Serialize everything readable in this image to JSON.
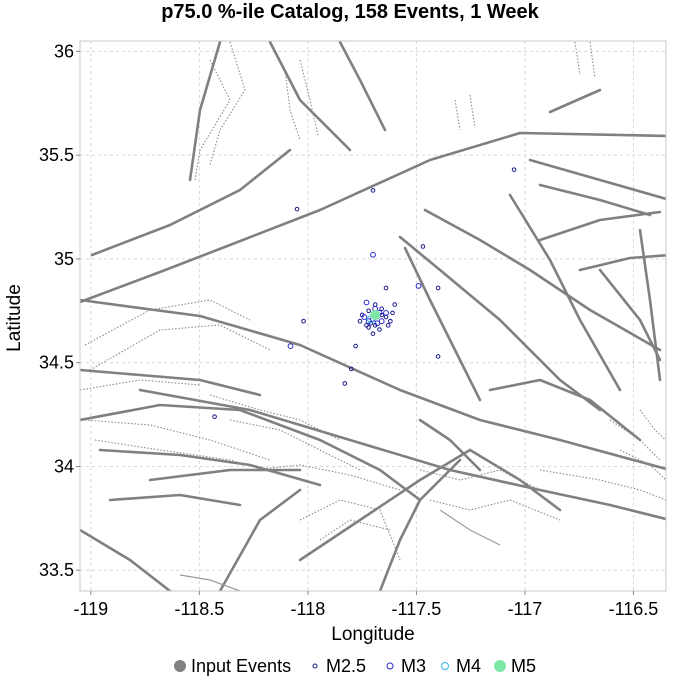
{
  "chart_data": {
    "type": "scatter",
    "title": "p75.0 %-ile Catalog, 158 Events, 1 Week",
    "xlabel": "Longitude",
    "ylabel": "Latitude",
    "xlim": [
      -119.05,
      -116.35
    ],
    "ylim": [
      33.4,
      36.05
    ],
    "xticks": [
      -119,
      -118.5,
      -118,
      -117.5,
      -117,
      -116.5
    ],
    "xtick_labels": [
      "-119",
      "-118.5",
      "-118",
      "-117.5",
      "-117",
      "-116.5"
    ],
    "yticks": [
      33.5,
      34,
      34.5,
      35,
      35.5,
      36
    ],
    "ytick_labels": [
      "33.5",
      "34",
      "34.5",
      "35",
      "35.5",
      "36"
    ],
    "grid": true,
    "legend_position": "bottom",
    "legend": [
      {
        "label": "Input Events",
        "color": "#808080",
        "style": "filled"
      },
      {
        "label": "M2.5",
        "color": "#1a1a8c",
        "style": "open"
      },
      {
        "label": "M3",
        "color": "#2a2acd",
        "style": "open"
      },
      {
        "label": "M4",
        "color": "#29b6e8",
        "style": "open"
      },
      {
        "label": "M5",
        "color": "#7ee8a8",
        "style": "filled"
      }
    ],
    "series": [
      {
        "name": "M2.5",
        "color": "#1a1a8c",
        "points": [
          [
            -118.05,
            35.24
          ],
          [
            -117.7,
            35.33
          ],
          [
            -117.05,
            35.43
          ],
          [
            -117.47,
            35.06
          ],
          [
            -117.4,
            34.86
          ],
          [
            -117.64,
            34.86
          ],
          [
            -118.02,
            34.7
          ],
          [
            -117.78,
            34.58
          ],
          [
            -117.8,
            34.47
          ],
          [
            -117.4,
            34.53
          ],
          [
            -117.83,
            34.4
          ],
          [
            -118.43,
            34.24
          ],
          [
            -117.72,
            34.75
          ],
          [
            -117.66,
            34.76
          ],
          [
            -117.64,
            34.72
          ],
          [
            -117.62,
            34.7
          ],
          [
            -117.67,
            34.66
          ],
          [
            -117.72,
            34.67
          ],
          [
            -117.76,
            34.7
          ],
          [
            -117.69,
            34.78
          ],
          [
            -117.6,
            34.78
          ],
          [
            -117.7,
            34.64
          ],
          [
            -117.75,
            34.73
          ],
          [
            -117.63,
            34.68
          ],
          [
            -117.71,
            34.69
          ],
          [
            -117.68,
            34.72
          ],
          [
            -117.73,
            34.68
          ],
          [
            -117.66,
            34.73
          ],
          [
            -117.61,
            34.74
          ],
          [
            -117.69,
            34.68
          ]
        ]
      },
      {
        "name": "M3",
        "color": "#2a2acd",
        "points": [
          [
            -117.7,
            35.02
          ],
          [
            -117.49,
            34.87
          ],
          [
            -118.08,
            34.58
          ],
          [
            -117.73,
            34.79
          ],
          [
            -117.67,
            34.74
          ],
          [
            -117.7,
            34.71
          ],
          [
            -117.66,
            34.7
          ],
          [
            -117.74,
            34.72
          ],
          [
            -117.69,
            34.76
          ],
          [
            -117.72,
            34.7
          ],
          [
            -117.68,
            34.69
          ],
          [
            -117.64,
            34.74
          ]
        ]
      },
      {
        "name": "M4",
        "color": "#29b6e8",
        "points": [
          [
            -117.71,
            34.71
          ]
        ]
      },
      {
        "name": "M5",
        "color": "#7ee8a8",
        "points": [
          [
            -117.69,
            34.73
          ]
        ]
      }
    ]
  }
}
